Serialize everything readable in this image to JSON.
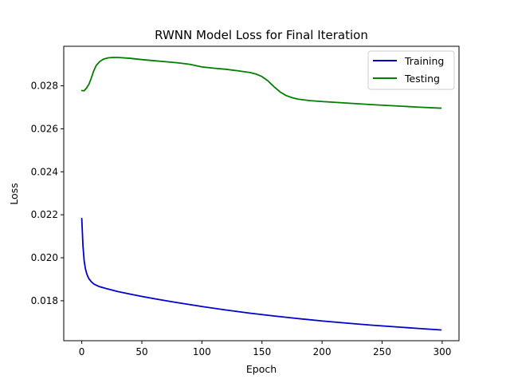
{
  "chart_data": {
    "type": "line",
    "title": "RWNN Model Loss for Final Iteration",
    "xlabel": "Epoch",
    "ylabel": "Loss",
    "xlim": [
      -15,
      314
    ],
    "ylim": [
      0.01614,
      0.02984
    ],
    "xticks": [
      0,
      50,
      100,
      150,
      200,
      250,
      300
    ],
    "yticks": [
      0.018,
      0.02,
      0.022,
      0.024,
      0.026,
      0.028
    ],
    "xtick_labels": [
      "0",
      "50",
      "100",
      "150",
      "200",
      "250",
      "300"
    ],
    "ytick_labels": [
      "0.018",
      "0.020",
      "0.022",
      "0.024",
      "0.026",
      "0.028"
    ],
    "grid": false,
    "legend_position": "top-right",
    "series": [
      {
        "name": "Training",
        "color": "#0000cc",
        "points": [
          [
            0,
            0.02183
          ],
          [
            1,
            0.02055
          ],
          [
            2,
            0.01985
          ],
          [
            3,
            0.0195
          ],
          [
            4,
            0.01928
          ],
          [
            5,
            0.01913
          ],
          [
            6,
            0.01902
          ],
          [
            8,
            0.01888
          ],
          [
            10,
            0.01878
          ],
          [
            14,
            0.01867
          ],
          [
            20,
            0.01857
          ],
          [
            30,
            0.01843
          ],
          [
            40,
            0.01831
          ],
          [
            50,
            0.0182
          ],
          [
            60,
            0.0181
          ],
          [
            70,
            0.018
          ],
          [
            80,
            0.01791
          ],
          [
            90,
            0.01782
          ],
          [
            100,
            0.01773
          ],
          [
            120,
            0.01757
          ],
          [
            140,
            0.01742
          ],
          [
            160,
            0.01729
          ],
          [
            180,
            0.01717
          ],
          [
            200,
            0.01706
          ],
          [
            220,
            0.01696
          ],
          [
            240,
            0.01687
          ],
          [
            260,
            0.01679
          ],
          [
            280,
            0.01671
          ],
          [
            299,
            0.01664
          ]
        ]
      },
      {
        "name": "Testing",
        "color": "#007f00",
        "points": [
          [
            0,
            0.02778
          ],
          [
            2,
            0.02777
          ],
          [
            4,
            0.0279
          ],
          [
            6,
            0.02808
          ],
          [
            8,
            0.02837
          ],
          [
            10,
            0.0287
          ],
          [
            12,
            0.02895
          ],
          [
            15,
            0.02913
          ],
          [
            18,
            0.02924
          ],
          [
            22,
            0.0293
          ],
          [
            26,
            0.02932
          ],
          [
            30,
            0.02932
          ],
          [
            40,
            0.02928
          ],
          [
            50,
            0.02922
          ],
          [
            60,
            0.02917
          ],
          [
            70,
            0.02912
          ],
          [
            80,
            0.02907
          ],
          [
            90,
            0.029
          ],
          [
            95,
            0.02894
          ],
          [
            100,
            0.02888
          ],
          [
            110,
            0.02882
          ],
          [
            120,
            0.02877
          ],
          [
            130,
            0.0287
          ],
          [
            140,
            0.02862
          ],
          [
            145,
            0.02855
          ],
          [
            150,
            0.02843
          ],
          [
            155,
            0.02823
          ],
          [
            160,
            0.02796
          ],
          [
            165,
            0.02772
          ],
          [
            170,
            0.02755
          ],
          [
            175,
            0.02745
          ],
          [
            180,
            0.02738
          ],
          [
            190,
            0.02731
          ],
          [
            200,
            0.02727
          ],
          [
            220,
            0.0272
          ],
          [
            240,
            0.02713
          ],
          [
            260,
            0.02707
          ],
          [
            280,
            0.02701
          ],
          [
            299,
            0.02696
          ]
        ]
      }
    ]
  }
}
